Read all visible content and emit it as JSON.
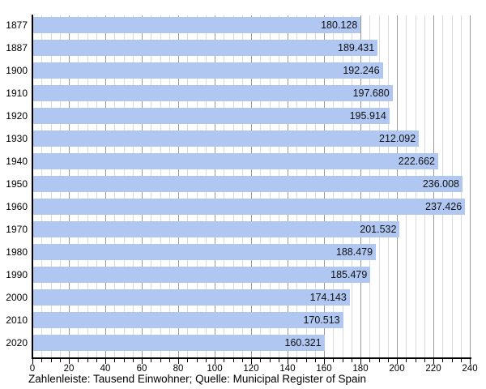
{
  "chart_data": {
    "type": "bar",
    "orientation": "horizontal",
    "categories": [
      "1877",
      "1887",
      "1900",
      "1910",
      "1920",
      "1930",
      "1940",
      "1950",
      "1960",
      "1970",
      "1980",
      "1990",
      "2000",
      "2010",
      "2020"
    ],
    "values": [
      180.128,
      189.431,
      192.246,
      197.68,
      195.914,
      212.092,
      222.662,
      236.008,
      237.426,
      201.532,
      188.479,
      185.479,
      174.143,
      170.513,
      160.321
    ],
    "value_labels": [
      "180.128",
      "189.431",
      "192.246",
      "197.680",
      "195.914",
      "212.092",
      "222.662",
      "236.008",
      "237.426",
      "201.532",
      "188.479",
      "185.479",
      "174.143",
      "170.513",
      "160.321"
    ],
    "xlim": [
      0,
      240
    ],
    "x_ticks": [
      0,
      20,
      40,
      60,
      80,
      100,
      120,
      140,
      160,
      180,
      200,
      220,
      240
    ],
    "minor_tick_step": 5,
    "major_tick_step": 20,
    "grid": true,
    "legend": "none",
    "title": "",
    "xlabel": "",
    "ylabel": "",
    "caption": "Zahlenleiste: Tausend Einwohner; Quelle: Municipal Register of Spain",
    "bar_color": "#b0c7f2",
    "grid_minor_color": "#d9d9d9",
    "grid_major_color": "#999999",
    "axis_color": "#000000",
    "value_text_color": "#111111"
  }
}
